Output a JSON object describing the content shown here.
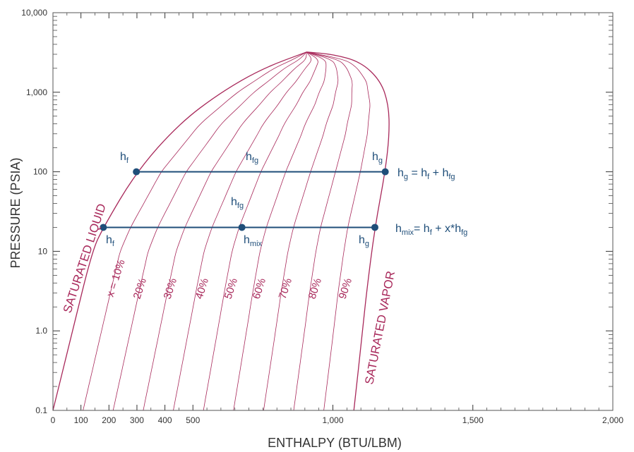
{
  "chart_data": {
    "type": "line",
    "title": "",
    "xlabel": "ENTHALPY (BTU/LBM)",
    "ylabel": "PRESSURE (PSIA)",
    "xlim": [
      0,
      2000
    ],
    "ylim": [
      0.1,
      10000
    ],
    "y_scale": "log",
    "x_ticks": [
      0,
      100,
      200,
      300,
      400,
      500,
      1000,
      1500,
      2000
    ],
    "x_tick_labels": [
      "0",
      "100",
      "200",
      "300",
      "400",
      "500",
      "1,000",
      "1,500",
      "2,000"
    ],
    "y_ticks": [
      0.1,
      1,
      10,
      100,
      1000,
      10000
    ],
    "y_tick_labels": [
      "0.1",
      "1.0",
      "10",
      "100",
      "1,000",
      "10,000"
    ],
    "grid": false,
    "colors": {
      "curves": "#a8285a",
      "lines": "#1f4e79",
      "axis": "#333333"
    },
    "series": [
      {
        "name": "SATURATED LIQUID",
        "x": [
          0,
          70,
          140,
          180,
          298,
          450,
          600,
          750,
          906
        ],
        "y": [
          0.1,
          1,
          10,
          20,
          100,
          400,
          1000,
          2000,
          3200
        ]
      },
      {
        "name": "SATURATED VAPOR",
        "x": [
          1075,
          1106,
          1120,
          1150,
          1187,
          1202,
          1199,
          1170,
          1100,
          1000,
          906
        ],
        "y": [
          0.1,
          1,
          3,
          20,
          100,
          300,
          700,
          1400,
          2400,
          3000,
          3200
        ]
      }
    ],
    "quality_lines": {
      "labels": [
        "x = 10%",
        "20%",
        "30%",
        "40%",
        "50%",
        "60%",
        "70%",
        "80%",
        "90%"
      ],
      "quality": [
        0.1,
        0.2,
        0.3,
        0.4,
        0.5,
        0.6,
        0.7,
        0.8,
        0.9
      ]
    },
    "points": [
      {
        "label": "h_f",
        "x": 298,
        "y": 100
      },
      {
        "label": "h_g",
        "x": 1187,
        "y": 100
      },
      {
        "label": "h_f",
        "x": 180,
        "y": 20
      },
      {
        "label": "h_mix",
        "x": 675,
        "y": 20
      },
      {
        "label": "h_g",
        "x": 1150,
        "y": 20
      }
    ],
    "annotations": {
      "hf_main": "h",
      "hf_sub": "f",
      "hg_main": "h",
      "hg_sub": "g",
      "hfg_main": "h",
      "hfg_sub": "fg",
      "hmix_main": "h",
      "hmix_sub": "mix",
      "eq1_h": "h",
      "eq1_g": "g",
      "eq1_mid": " = h",
      "eq1_f": "f",
      "eq1_plus": " + h",
      "eq1_fg": "fg",
      "eq2_h": "h",
      "eq2_mix": "mix",
      "eq2_mid": "= h",
      "eq2_f": "f",
      "eq2_plus": " + x*h",
      "eq2_fg": "fg"
    }
  }
}
